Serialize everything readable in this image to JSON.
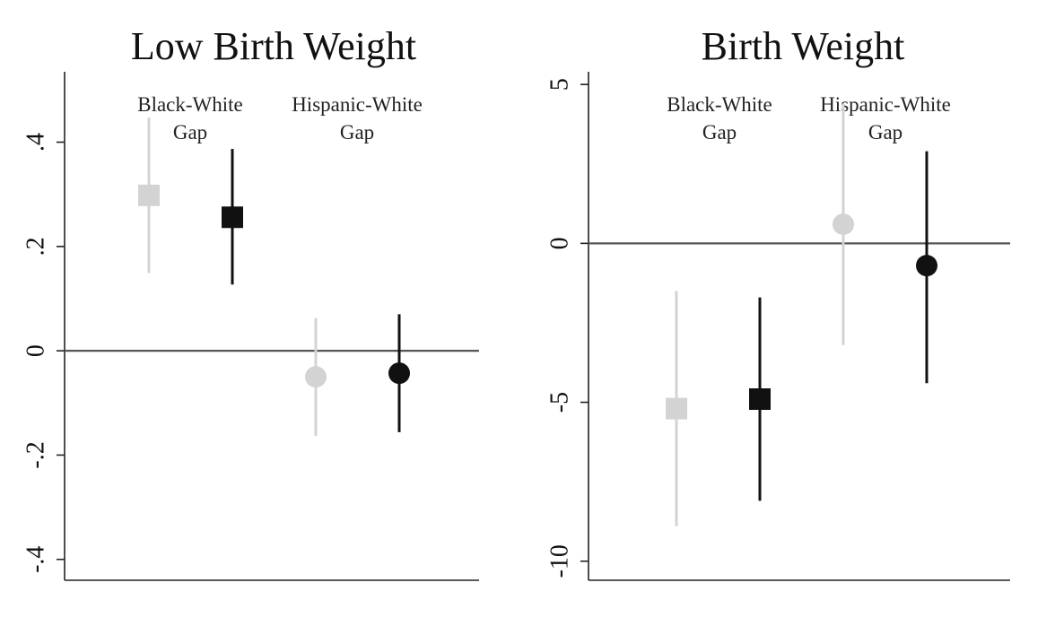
{
  "chart_data": [
    {
      "type": "scatter",
      "title": "Low Birth Weight",
      "ylim": [
        -0.44,
        0.535
      ],
      "yticks": [
        {
          "value": -0.4,
          "label": "-.4"
        },
        {
          "value": -0.2,
          "label": "-.2"
        },
        {
          "value": 0,
          "label": "0"
        },
        {
          "value": 0.2,
          "label": ".2"
        },
        {
          "value": 0.4,
          "label": ".4"
        }
      ],
      "reference_line": 0,
      "groups": [
        {
          "line1": "Black-White",
          "line2": "Gap"
        },
        {
          "line1": "Hispanic-White",
          "line2": "Gap"
        }
      ],
      "points": [
        {
          "group": 0,
          "marker": "square",
          "color": "#d3d3d3",
          "estimate": 0.298,
          "ci": [
            0.149,
            0.447
          ]
        },
        {
          "group": 0,
          "marker": "square",
          "color": "#111111",
          "estimate": 0.256,
          "ci": [
            0.127,
            0.387
          ]
        },
        {
          "group": 1,
          "marker": "circle",
          "color": "#d3d3d3",
          "estimate": -0.05,
          "ci": [
            -0.163,
            0.063
          ]
        },
        {
          "group": 1,
          "marker": "circle",
          "color": "#111111",
          "estimate": -0.043,
          "ci": [
            -0.156,
            0.07
          ]
        }
      ],
      "grid": false
    },
    {
      "type": "scatter",
      "title": "Birth Weight",
      "ylim": [
        -10.6,
        5.4
      ],
      "yticks": [
        {
          "value": -10,
          "label": "-10"
        },
        {
          "value": -5,
          "label": "-5"
        },
        {
          "value": 0,
          "label": "0"
        },
        {
          "value": 5,
          "label": "5"
        }
      ],
      "reference_line": 0,
      "groups": [
        {
          "line1": "Black-White",
          "line2": "Gap"
        },
        {
          "line1": "Hispanic-White",
          "line2": "Gap"
        }
      ],
      "points": [
        {
          "group": 0,
          "marker": "square",
          "color": "#d3d3d3",
          "estimate": -5.2,
          "ci": [
            -8.9,
            -1.5
          ]
        },
        {
          "group": 0,
          "marker": "square",
          "color": "#111111",
          "estimate": -4.9,
          "ci": [
            -8.1,
            -1.7
          ]
        },
        {
          "group": 1,
          "marker": "circle",
          "color": "#d3d3d3",
          "estimate": 0.6,
          "ci": [
            -3.2,
            4.4
          ]
        },
        {
          "group": 1,
          "marker": "circle",
          "color": "#111111",
          "estimate": -0.7,
          "ci": [
            -4.4,
            2.9
          ]
        }
      ],
      "grid": false
    }
  ]
}
